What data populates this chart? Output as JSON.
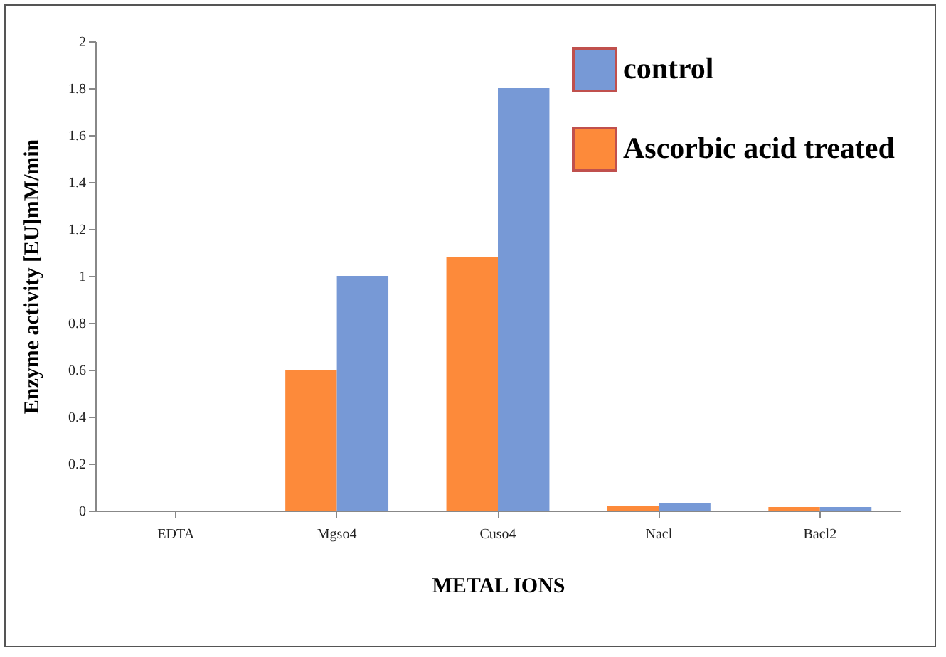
{
  "chart_data": {
    "type": "bar",
    "xlabel": "METAL IONS",
    "ylabel": "Enzyme activity [EU]mM/min",
    "categories": [
      "EDTA",
      "Mgso4",
      "Cuso4",
      "Nacl",
      "Bacl2"
    ],
    "series": [
      {
        "name": "Ascorbic acid treated",
        "color": "#fd8a3a",
        "values": [
          0,
          0.6,
          1.08,
          0.02,
          0.015
        ]
      },
      {
        "name": "control",
        "color": "#7799d6",
        "values": [
          0,
          1.0,
          1.8,
          0.03,
          0.015
        ]
      }
    ],
    "ylim": [
      0,
      2
    ],
    "yticks": [
      0,
      0.2,
      0.4,
      0.6,
      0.8,
      1,
      1.2,
      1.4,
      1.6,
      1.8,
      2
    ],
    "grid": false,
    "legend": "top right"
  }
}
